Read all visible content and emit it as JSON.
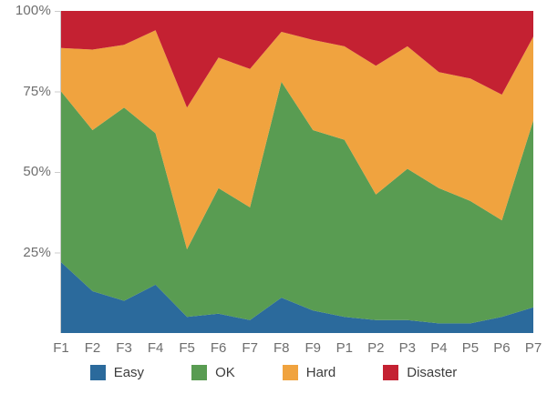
{
  "chart_data": {
    "type": "area",
    "stacking": "percent",
    "title": "",
    "categories": [
      "F1",
      "F2",
      "F3",
      "F4",
      "F5",
      "F6",
      "F7",
      "F8",
      "F9",
      "P1",
      "P2",
      "P3",
      "P4",
      "P5",
      "P6",
      "P7"
    ],
    "series": [
      {
        "name": "Easy",
        "color": "#2b6a9c",
        "values": [
          22,
          13,
          10,
          15,
          5,
          6,
          4,
          11,
          7,
          5,
          4,
          4,
          3,
          3,
          5,
          8
        ]
      },
      {
        "name": "OK",
        "color": "#599c52",
        "values": [
          53,
          50,
          60,
          47,
          21,
          39,
          35,
          67,
          56,
          55,
          39,
          47,
          42,
          38,
          30,
          58
        ]
      },
      {
        "name": "Hard",
        "color": "#f0a33f",
        "values": [
          13.5,
          25,
          19.5,
          32,
          44,
          40.5,
          43,
          15.5,
          28,
          29,
          40,
          38,
          36,
          38,
          39,
          26
        ]
      },
      {
        "name": "Disaster",
        "color": "#c42132",
        "values": [
          11.5,
          12,
          10.5,
          6,
          30,
          14.5,
          18,
          6.5,
          9,
          11,
          17,
          11,
          19,
          21,
          26,
          8
        ]
      }
    ],
    "y_axis": {
      "min": 0,
      "max": 100,
      "tick_values": [
        25,
        50,
        75,
        100
      ],
      "tick_labels": [
        "25%",
        "50%",
        "75%",
        "100%"
      ]
    },
    "legend": {
      "position": "bottom"
    },
    "grid": false,
    "colors": {
      "axis_line": "#cccccc",
      "axis_label": "#6e6e6e",
      "legend_label": "#3d3d3d",
      "background": "#ffffff"
    }
  }
}
